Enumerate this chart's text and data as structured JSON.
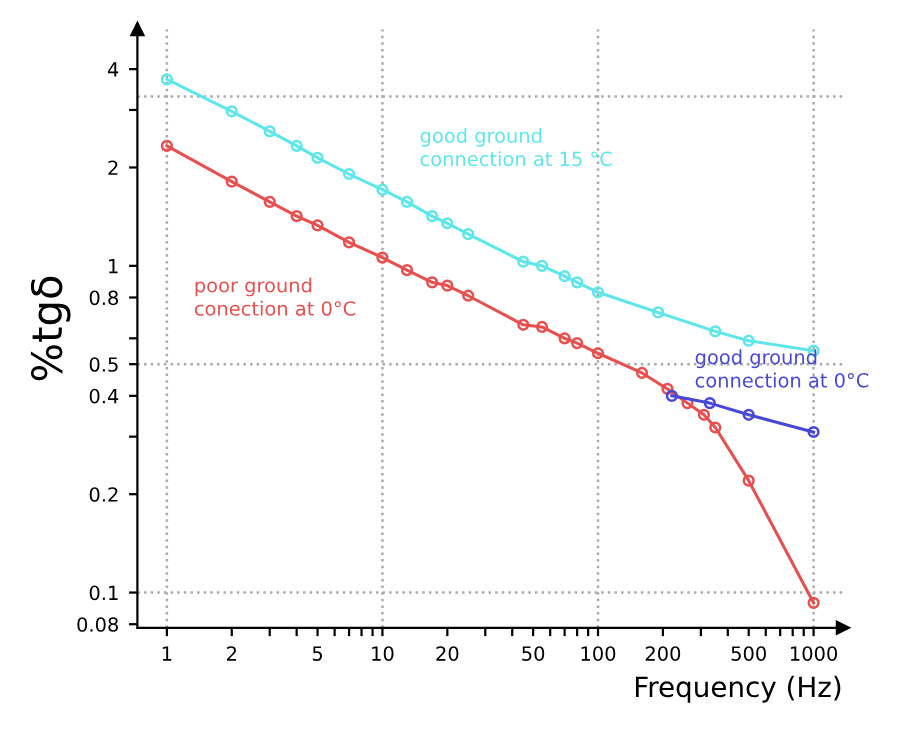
{
  "chart_data": {
    "type": "line",
    "xlabel": "Frequency (Hz)",
    "ylabel": "%tgδ",
    "log": "xy",
    "xlim": [
      0.73,
      1365
    ],
    "ylim": [
      0.078,
      5.3
    ],
    "xticks": [
      1,
      2,
      {
        "value": 3,
        "label": null
      },
      {
        "value": 4,
        "label": null
      },
      5,
      {
        "value": 6,
        "label": null
      },
      {
        "value": 7,
        "label": null
      },
      {
        "value": 8,
        "label": null
      },
      {
        "value": 9,
        "label": null
      },
      10,
      20,
      {
        "value": 30,
        "label": null
      },
      {
        "value": 40,
        "label": null
      },
      50,
      {
        "value": 60,
        "label": null
      },
      {
        "value": 70,
        "label": null
      },
      {
        "value": 80,
        "label": null
      },
      {
        "value": 90,
        "label": null
      },
      100,
      200,
      {
        "value": 300,
        "label": null
      },
      {
        "value": 400,
        "label": null
      },
      500,
      {
        "value": 600,
        "label": null
      },
      {
        "value": 700,
        "label": null
      },
      {
        "value": 800,
        "label": null
      },
      {
        "value": 900,
        "label": null
      },
      1000
    ],
    "yticks": [
      0.08,
      0.1,
      0.2,
      {
        "value": 0.3,
        "label": null
      },
      0.4,
      0.5,
      {
        "value": 0.6,
        "label": null
      },
      0.8,
      1,
      2,
      {
        "value": 3,
        "label": null
      },
      4
    ],
    "grid": false,
    "marker": "circle",
    "line_style": "solid",
    "ref_lines": [
      {
        "axis": "x",
        "value": 1,
        "color": "#aaaaaa",
        "line_style": "dotted"
      },
      {
        "axis": "x",
        "value": 10,
        "color": "#aaaaaa",
        "line_style": "dotted"
      },
      {
        "axis": "x",
        "value": 100,
        "color": "#aaaaaa",
        "line_style": "dotted"
      },
      {
        "axis": "x",
        "value": 1000,
        "color": "#aaaaaa",
        "line_style": "dotted"
      },
      {
        "axis": "y",
        "value": 0.1,
        "color": "#aaaaaa",
        "line_style": "dotted"
      },
      {
        "axis": "y",
        "value": 0.5,
        "color": "#aaaaaa",
        "line_style": "dotted"
      },
      {
        "axis": "y",
        "value": 3.3,
        "color": "#aaaaaa",
        "line_style": "dotted"
      }
    ],
    "series": [
      {
        "name": "good ground\nconnection at 15 °C",
        "color": "#5ee6ea",
        "x": [
          1,
          2,
          3,
          4,
          5,
          7,
          10,
          13,
          17,
          20,
          25,
          45,
          55,
          70,
          80,
          100,
          190,
          350,
          500,
          1000
        ],
        "values": [
          3.72,
          2.97,
          2.58,
          2.33,
          2.14,
          1.91,
          1.71,
          1.57,
          1.42,
          1.35,
          1.25,
          1.03,
          1.0,
          0.93,
          0.89,
          0.83,
          0.72,
          0.63,
          0.59,
          0.55
        ]
      },
      {
        "name": "poor ground\nconection at 0°C",
        "color": "#e8504f",
        "x": [
          1,
          2,
          3,
          4,
          5,
          7,
          10,
          13,
          17,
          20,
          25,
          45,
          55,
          70,
          80,
          100,
          160,
          210,
          260,
          310,
          350,
          500,
          1000
        ],
        "values": [
          2.33,
          1.81,
          1.57,
          1.42,
          1.33,
          1.18,
          1.06,
          0.97,
          0.89,
          0.87,
          0.81,
          0.66,
          0.65,
          0.6,
          0.58,
          0.54,
          0.47,
          0.42,
          0.38,
          0.35,
          0.32,
          0.22,
          0.093
        ]
      },
      {
        "name": "good ground\nconnection at 0°C",
        "color": "#4848d8",
        "x": [
          220,
          330,
          500,
          1000
        ],
        "values": [
          0.4,
          0.38,
          0.35,
          0.31
        ]
      }
    ]
  }
}
